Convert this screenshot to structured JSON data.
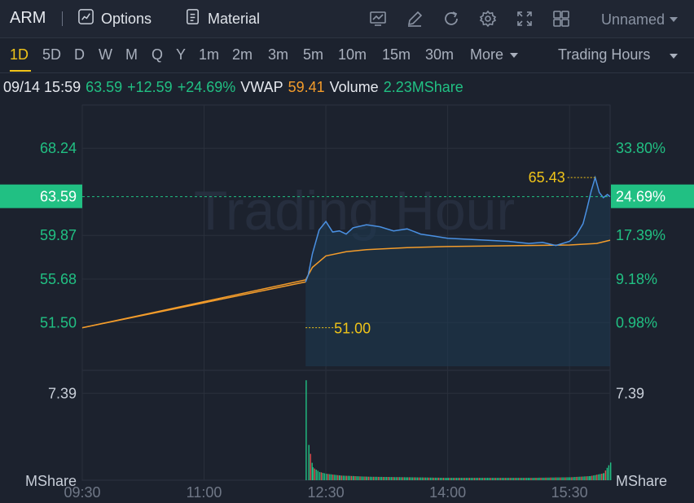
{
  "header": {
    "ticker": "ARM",
    "options_label": "Options",
    "material_label": "Material",
    "layout_name": "Unnamed",
    "tools": [
      "chart-type-icon",
      "draw-pen-icon",
      "refresh-icon",
      "settings-gear-icon",
      "fullscreen-expand-icon",
      "grid-layout-icon"
    ]
  },
  "periods": [
    "1D",
    "5D",
    "D",
    "W",
    "M",
    "Q",
    "Y",
    "1m",
    "2m",
    "3m",
    "5m",
    "10m",
    "15m",
    "30m",
    "More"
  ],
  "active_period": "1D",
  "session_label": "Trading Hours",
  "info": {
    "datetime": "09/14 15:59",
    "price": "63.59",
    "change": "+12.59",
    "change_pct": "+24.69%",
    "vwap_label": "VWAP",
    "vwap_value": "59.41",
    "volume_label": "Volume",
    "volume_value": "2.23MShare"
  },
  "colors": {
    "up": "#21c083",
    "price_line": "#4a90e2",
    "vwap_line": "#f39c2b",
    "marker": "#f0c419",
    "background": "#1c222e"
  },
  "chart_data": {
    "type": "line",
    "watermark": "Trading Hour",
    "price_axis_left": [
      "68.24",
      "59.87",
      "55.68",
      "51.50"
    ],
    "price_axis_right": [
      "33.80%",
      "17.39%",
      "9.18%",
      "0.98%"
    ],
    "current_price_label": "63.59",
    "current_pct_label": "24.69%",
    "high_marker_label": "65.43",
    "prev_close_marker_label": "51.00",
    "volume_axis_left": [
      "7.39",
      "MShare"
    ],
    "volume_axis_right": [
      "7.39",
      "MShare"
    ],
    "x_tick_labels": [
      "09:30",
      "11:00",
      "12:30",
      "14:00",
      "15:30"
    ],
    "ylim": [
      47.3,
      72.4
    ],
    "prev_close": 51.0,
    "series": [
      {
        "name": "Price",
        "x": [
          "09:30",
          "12:15",
          "12:17",
          "12:20",
          "12:25",
          "12:30",
          "12:35",
          "12:40",
          "12:45",
          "12:50",
          "13:00",
          "13:10",
          "13:20",
          "13:30",
          "13:40",
          "13:50",
          "14:00",
          "14:15",
          "14:30",
          "14:45",
          "15:00",
          "15:10",
          "15:20",
          "15:30",
          "15:35",
          "15:40",
          "15:43",
          "15:46",
          "15:49",
          "15:52",
          "15:55",
          "15:58",
          "16:00"
        ],
        "values": [
          51.0,
          55.4,
          56.1,
          58.1,
          60.4,
          61.2,
          60.2,
          60.3,
          60.0,
          60.6,
          60.9,
          60.7,
          60.3,
          60.5,
          60.0,
          59.8,
          59.6,
          59.5,
          59.4,
          59.3,
          59.1,
          59.2,
          58.9,
          59.3,
          59.9,
          61.0,
          62.5,
          64.1,
          65.43,
          64.0,
          63.5,
          63.8,
          63.59
        ]
      },
      {
        "name": "VWAP",
        "x": [
          "09:30",
          "12:15",
          "12:20",
          "12:30",
          "12:45",
          "13:00",
          "13:30",
          "14:00",
          "14:30",
          "15:00",
          "15:30",
          "15:50",
          "16:00"
        ],
        "values": [
          51.0,
          55.6,
          56.8,
          57.9,
          58.3,
          58.5,
          58.7,
          58.8,
          58.85,
          58.9,
          58.95,
          59.1,
          59.41
        ]
      }
    ],
    "volume": {
      "x": [
        "12:15",
        "12:17",
        "12:20",
        "12:25",
        "12:30",
        "12:40",
        "12:50",
        "13:00",
        "13:30",
        "14:00",
        "14:30",
        "15:00",
        "15:30",
        "15:45",
        "15:55",
        "16:00"
      ],
      "values": [
        8.5,
        3.0,
        1.1,
        0.7,
        0.55,
        0.4,
        0.35,
        0.3,
        0.25,
        0.2,
        0.2,
        0.2,
        0.25,
        0.35,
        0.6,
        1.5
      ]
    }
  }
}
